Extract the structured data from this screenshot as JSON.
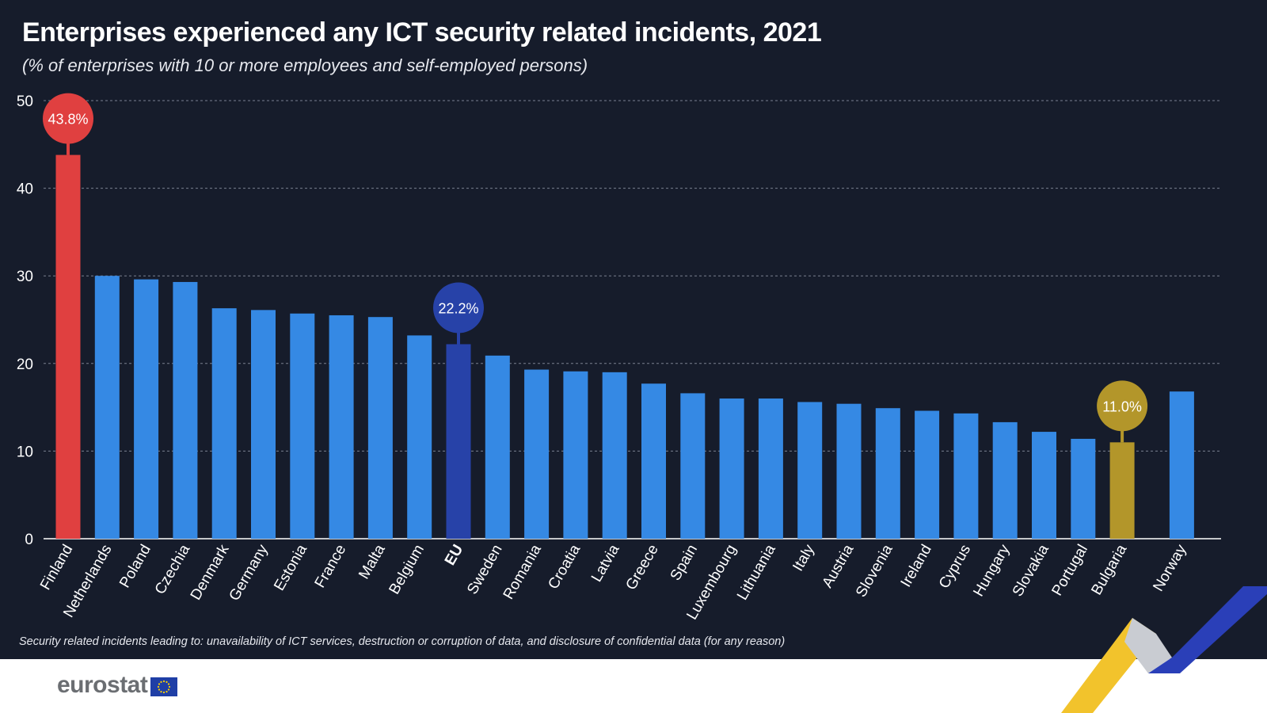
{
  "header": {
    "title": "Enterprises experienced any ICT security related incidents, 2021",
    "subtitle": "(% of enterprises with 10 or more employees and self-employed persons)"
  },
  "note": "Security related incidents leading to: unavailability of ICT services, destruction or corruption of data, and disclosure of confidential data (for any reason)",
  "brand": {
    "logo_text": "eurostat",
    "logo_icon": "eu-flag-icon"
  },
  "colors": {
    "bar_default": "#3589e4",
    "bar_highlight_max": "#e04040",
    "bar_eu": "#2742a8",
    "bar_highlight_min": "#b3962a",
    "background": "#161c2b",
    "gridline": "#7a8090",
    "text": "#ffffff"
  },
  "chart_data": {
    "type": "bar",
    "ylim": [
      0,
      50
    ],
    "yticks": [
      0,
      10,
      20,
      30,
      40,
      50
    ],
    "grid": true,
    "categories": [
      "Finland",
      "Netherlands",
      "Poland",
      "Czechia",
      "Denmark",
      "Germany",
      "Estonia",
      "France",
      "Malta",
      "Belgium",
      "EU",
      "Sweden",
      "Romania",
      "Croatia",
      "Latvia",
      "Greece",
      "Spain",
      "Luxembourg",
      "Lithuania",
      "Italy",
      "Austria",
      "Slovenia",
      "Ireland",
      "Cyprus",
      "Hungary",
      "Slovakia",
      "Portugal",
      "Bulgaria",
      "Norway"
    ],
    "values": [
      43.8,
      30.0,
      29.6,
      29.3,
      26.3,
      26.1,
      25.7,
      25.5,
      25.3,
      23.2,
      22.2,
      20.9,
      19.3,
      19.1,
      19.0,
      17.7,
      16.6,
      16.0,
      16.0,
      15.6,
      15.4,
      14.9,
      14.6,
      14.3,
      13.3,
      12.2,
      11.4,
      11.0,
      16.8
    ],
    "highlights": [
      {
        "category": "Finland",
        "label": "43.8%",
        "color": "#e04040"
      },
      {
        "category": "EU",
        "label": "22.2%",
        "color": "#2742a8"
      },
      {
        "category": "Bulgaria",
        "label": "11.0%",
        "color": "#b3962a"
      }
    ],
    "bold_categories": [
      "EU"
    ]
  }
}
